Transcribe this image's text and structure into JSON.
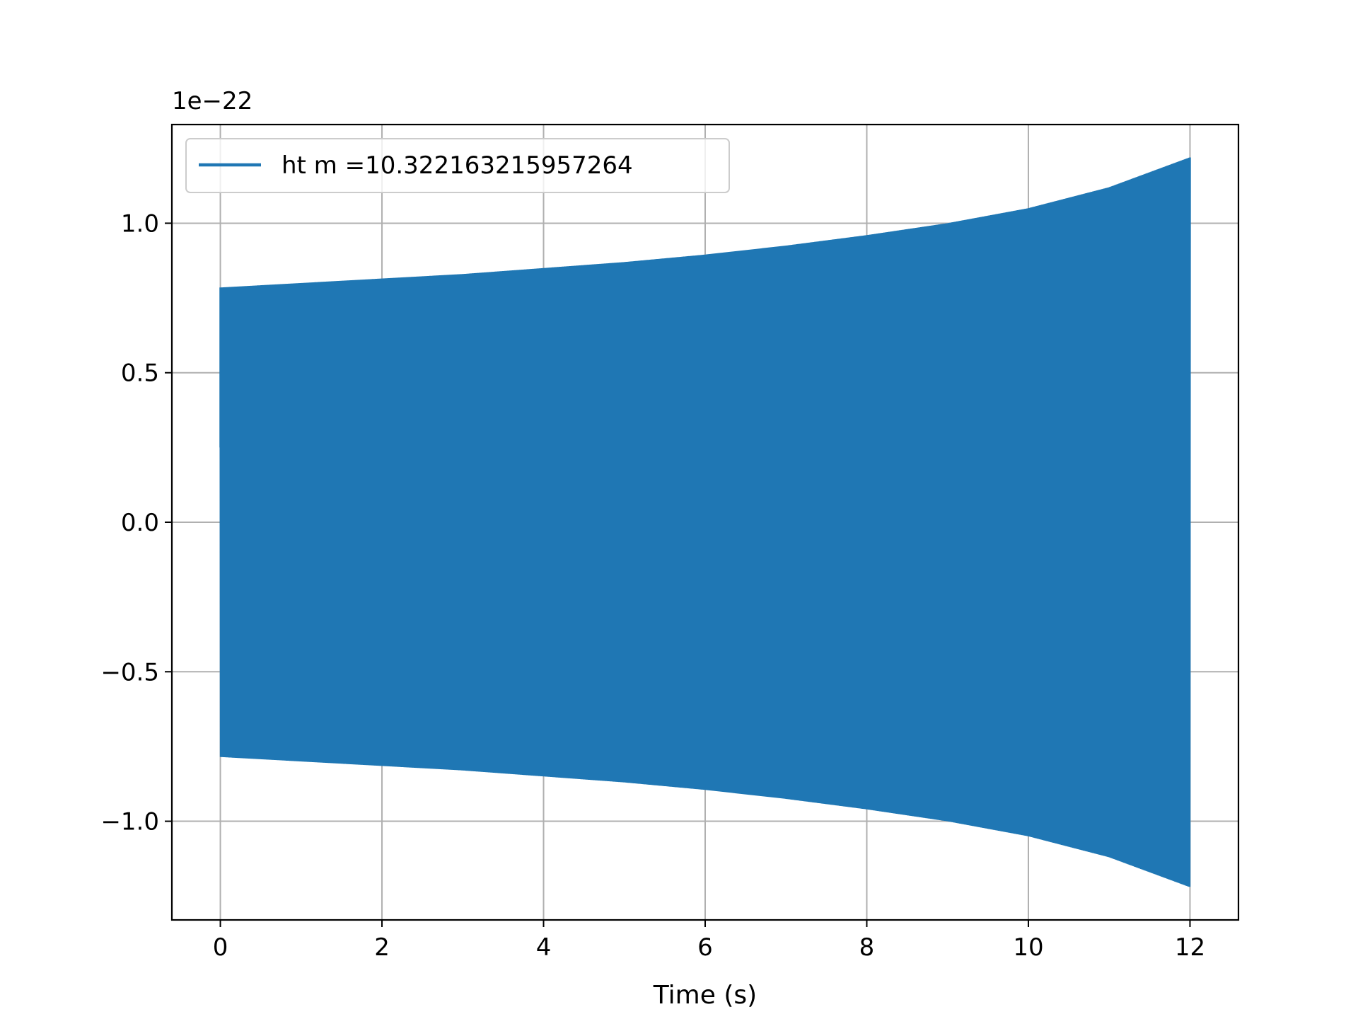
{
  "chart_data": {
    "type": "line",
    "title": "",
    "xlabel": "Time (s)",
    "ylabel": "",
    "y_offset_label": "1e−22",
    "xlim": [
      -0.6,
      12.6
    ],
    "ylim": [
      -1.33,
      1.33
    ],
    "x_ticks": [
      0,
      2,
      4,
      6,
      8,
      10,
      12
    ],
    "x_tick_labels": [
      "0",
      "2",
      "4",
      "6",
      "8",
      "10",
      "12"
    ],
    "y_ticks": [
      -1.0,
      -0.5,
      0.0,
      0.5,
      1.0
    ],
    "y_tick_labels": [
      "−1.0",
      "−0.5",
      "0.0",
      "0.5",
      "1.0"
    ],
    "grid": true,
    "legend_position": "top-left",
    "series": [
      {
        "name": "ht m =10.322163215957264",
        "color": "#1f77b4",
        "description_start_value": 0.25,
        "envelope": {
          "x": [
            0,
            1,
            2,
            3,
            4,
            5,
            6,
            7,
            8,
            9,
            10,
            11,
            12
          ],
          "amplitude": [
            0.785,
            0.8,
            0.815,
            0.83,
            0.85,
            0.87,
            0.895,
            0.925,
            0.96,
            1.0,
            1.05,
            1.12,
            1.22
          ]
        }
      }
    ]
  }
}
